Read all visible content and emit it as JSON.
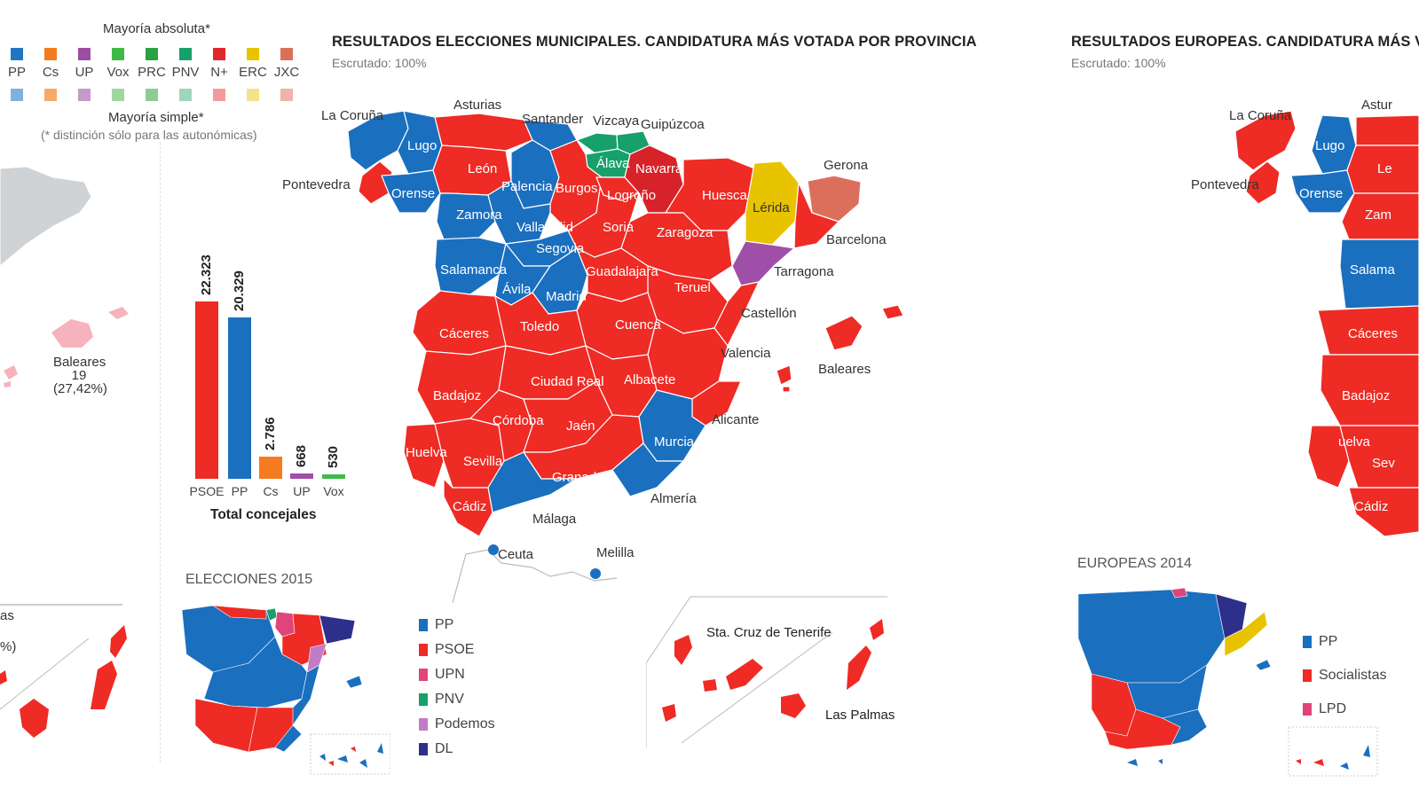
{
  "top_legend": {
    "absolute_title": "Mayoría absoluta*",
    "simple_title": "Mayoría simple*",
    "note": "(* distinción sólo para las autonómicas)",
    "parties": [
      {
        "label": "PP",
        "abs": "#1f77c4",
        "simple": "#7fb1df"
      },
      {
        "label": "Cs",
        "abs": "#f47b20",
        "simple": "#f7a96a"
      },
      {
        "label": "UP",
        "abs": "#9b4fa0",
        "simple": "#c49ac8"
      },
      {
        "label": "Vox",
        "abs": "#3fba49",
        "simple": "#9ed89f"
      },
      {
        "label": "PRC",
        "abs": "#2aa047",
        "simple": "#8ccb94"
      },
      {
        "label": "PNV",
        "abs": "#18a06a",
        "simple": "#9fd5bd"
      },
      {
        "label": "N+",
        "abs": "#e1272b",
        "simple": "#f29c99"
      },
      {
        "label": "ERC",
        "abs": "#e8c300",
        "simple": "#f3e28a"
      },
      {
        "label": "JXC",
        "abs": "#dc6f5b",
        "simple": "#efb3a7"
      }
    ]
  },
  "left_panel": {
    "baleares_label": "Baleares",
    "baleares_seats": "19",
    "baleares_pct": "(27,42%)",
    "partial_label_1": "as",
    "partial_label_2": "%)"
  },
  "municipal": {
    "title": "RESULTADOS ELECCIONES MUNICIPALES. CANDIDATURA MÁS VOTADA POR PROVINCIA",
    "subtitle": "Escrutado: 100%",
    "colors": {
      "PSOE": "#ee2b24",
      "PP": "#1b6fbf",
      "Cs": "#f47b20",
      "UP": "#a04fa8",
      "Vox": "#3fba49",
      "PNV": "#18a06a",
      "NAV": "#d8222a",
      "ERC": "#e8c300",
      "JXC": "#dc6f5b"
    },
    "province_labels": [
      "La Coruña",
      "Asturias",
      "Santander",
      "Vizcaya",
      "Guipúzcoa",
      "Lugo",
      "León",
      "Palencia",
      "Burgos",
      "Álava",
      "Navarra",
      "Pontevedra",
      "Orense",
      "Zamora",
      "Valladolid",
      "Logroño",
      "Huesca",
      "Lérida",
      "Gerona",
      "Soria",
      "Zaragoza",
      "Barcelona",
      "Segovia",
      "Salamanca",
      "Ávila",
      "Madrid",
      "Guadalajara",
      "Teruel",
      "Tarragona",
      "Castellón",
      "Cáceres",
      "Toledo",
      "Cuenca",
      "Valencia",
      "Baleares",
      "Ciudad Real",
      "Albacete",
      "Badajoz",
      "Alicante",
      "Córdoba",
      "Jaén",
      "Murcia",
      "Huelva",
      "Sevilla",
      "Granada",
      "Almería",
      "Cádiz",
      "Málaga",
      "Ceuta",
      "Melilla",
      "Sta. Cruz de Tenerife",
      "Las Palmas"
    ]
  },
  "chart_data": {
    "type": "bar",
    "categories": [
      "PSOE",
      "PP",
      "Cs",
      "UP",
      "Vox"
    ],
    "values": [
      22323,
      20329,
      2786,
      668,
      530
    ],
    "value_labels": [
      "22.323",
      "20.329",
      "2.786",
      "668",
      "530"
    ],
    "colors": [
      "#ee2b24",
      "#1b6fbf",
      "#f47b20",
      "#a04fa8",
      "#3fba49"
    ],
    "xlabel": "Total concejales",
    "title": ""
  },
  "elections_2015": {
    "title": "ELECCIONES 2015",
    "legend": [
      {
        "label": "PP",
        "color": "#1b6fbf"
      },
      {
        "label": "PSOE",
        "color": "#ee2b24"
      },
      {
        "label": "UPN",
        "color": "#e0447a"
      },
      {
        "label": "PNV",
        "color": "#18a06a"
      },
      {
        "label": "Podemos",
        "color": "#c27bc7"
      },
      {
        "label": "DL",
        "color": "#2e2f8a"
      }
    ]
  },
  "europeas": {
    "title": "RESULTADOS EUROPEAS. CANDIDATURA MÁS VO",
    "subtitle": "Escrutado: 100%",
    "province_labels": [
      "La Coruña",
      "Astur",
      "Lugo",
      "Le",
      "Pontevedra",
      "Orense",
      "Zam",
      "Salama",
      "Cáceres",
      "Badajoz",
      "uelva",
      "Sev",
      "Cádiz"
    ],
    "section_2014": "EUROPEAS 2014",
    "legend_2014": [
      {
        "label": "PP",
        "color": "#1b6fbf"
      },
      {
        "label": "Socialistas",
        "color": "#ee2b24"
      },
      {
        "label": "LPD",
        "color": "#e0447a"
      }
    ]
  }
}
